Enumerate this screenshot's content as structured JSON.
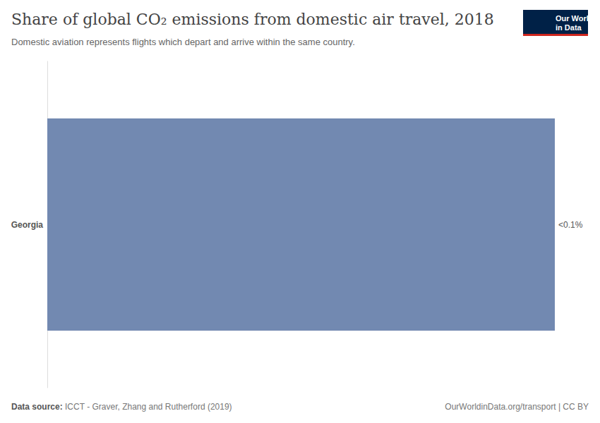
{
  "chart_data": {
    "type": "bar",
    "orientation": "horizontal",
    "title": "Share of global CO₂ emissions from domestic air travel, 2018",
    "subtitle": "Domestic aviation represents flights which depart and arrive within the same country.",
    "categories": [
      "Georgia"
    ],
    "values": [
      0.001
    ],
    "value_labels": [
      "<0.1%"
    ],
    "color": "#7289b1",
    "xlim": [
      0,
      0.001
    ],
    "grid": false,
    "tick_labels": "y",
    "data_labels": true,
    "source_label": "Data source:",
    "source": "ICCT - Graver, Zhang and Rutherford (2019)",
    "footer": "OurWorldinData.org/transport | CC BY",
    "logo": [
      "Our World",
      "in Data"
    ]
  }
}
